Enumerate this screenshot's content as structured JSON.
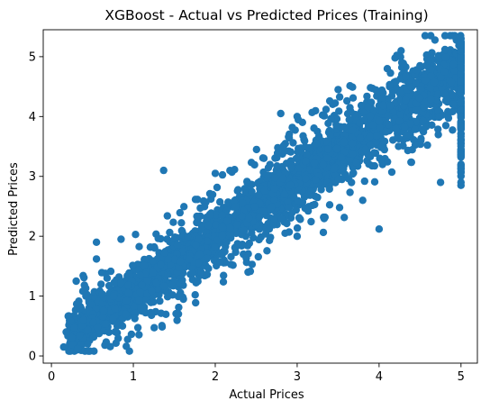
{
  "chart_data": {
    "type": "scatter",
    "title": "XGBoost - Actual vs Predicted Prices (Training)",
    "xlabel": "Actual Prices",
    "ylabel": "Predicted Prices",
    "xlim": [
      -0.1,
      5.2
    ],
    "ylim": [
      -0.12,
      5.45
    ],
    "xticks": [
      0,
      1,
      2,
      3,
      4,
      5
    ],
    "yticks": [
      0,
      1,
      2,
      3,
      4,
      5
    ],
    "xtick_labels": [
      "0",
      "1",
      "2",
      "3",
      "4",
      "5"
    ],
    "ytick_labels": [
      "0",
      "1",
      "2",
      "3",
      "4",
      "5"
    ],
    "grid": false,
    "marker_color": "#1f77b4",
    "point_count_estimate": 16000,
    "trend": {
      "description": "Points cluster tightly along the identity line; predicted rises with actual",
      "slope": 0.93,
      "intercept": 0.15
    },
    "notable_points": [
      {
        "x": 0.15,
        "y": 0.15
      },
      {
        "x": 0.18,
        "y": 0.4
      },
      {
        "x": 0.32,
        "y": 0.12
      },
      {
        "x": 0.55,
        "y": 1.62
      },
      {
        "x": 0.55,
        "y": 1.9
      },
      {
        "x": 0.85,
        "y": 1.95
      },
      {
        "x": 1.37,
        "y": 3.1
      },
      {
        "x": 1.55,
        "y": 0.7
      },
      {
        "x": 2.0,
        "y": 3.05
      },
      {
        "x": 2.4,
        "y": 1.4
      },
      {
        "x": 2.8,
        "y": 4.05
      },
      {
        "x": 3.0,
        "y": 4.0
      },
      {
        "x": 3.0,
        "y": 2.0
      },
      {
        "x": 3.5,
        "y": 4.45
      },
      {
        "x": 3.8,
        "y": 2.6
      },
      {
        "x": 4.0,
        "y": 2.12
      },
      {
        "x": 4.1,
        "y": 4.8
      },
      {
        "x": 4.5,
        "y": 4.85
      },
      {
        "x": 4.75,
        "y": 2.9
      },
      {
        "x": 5.0,
        "y": 5.3
      },
      {
        "x": 5.0,
        "y": 5.2
      },
      {
        "x": 5.0,
        "y": 2.9
      },
      {
        "x": 5.0,
        "y": 2.85
      }
    ]
  }
}
